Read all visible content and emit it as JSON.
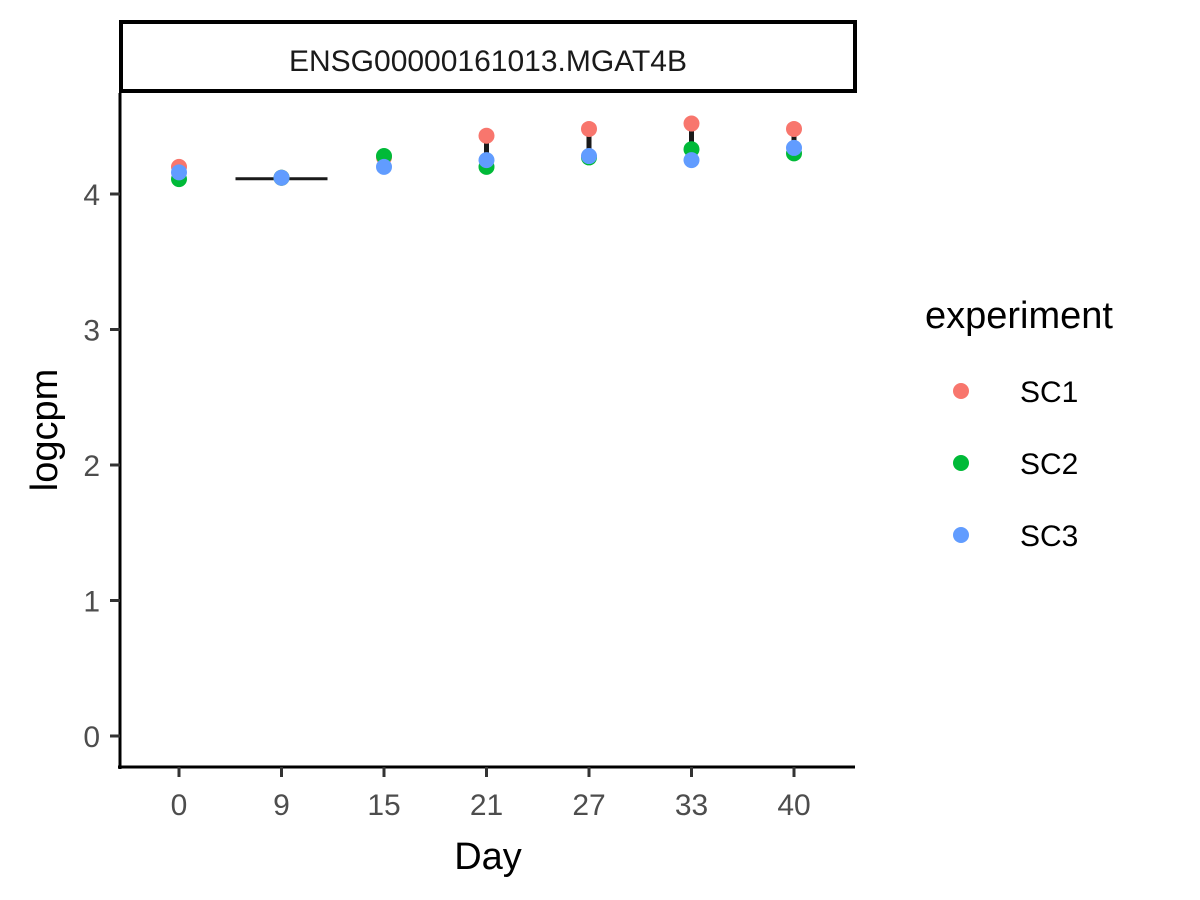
{
  "chart_data": {
    "type": "scatter",
    "facet_title": "ENSG00000161013.MGAT4B",
    "xlabel": "Day",
    "ylabel": "logcpm",
    "categories": [
      "0",
      "9",
      "15",
      "21",
      "27",
      "33",
      "40"
    ],
    "yticks": [
      0,
      1,
      2,
      3,
      4
    ],
    "ylim": [
      -0.2,
      4.75
    ],
    "grid": false,
    "legend": {
      "title": "experiment",
      "position": "right"
    },
    "series": [
      {
        "name": "SC1",
        "color": "#F8766D",
        "values": [
          4.2,
          4.12,
          4.27,
          4.43,
          4.48,
          4.52,
          4.48
        ]
      },
      {
        "name": "SC2",
        "color": "#00BA38",
        "values": [
          4.11,
          4.12,
          4.28,
          4.2,
          4.27,
          4.33,
          4.3
        ]
      },
      {
        "name": "SC3",
        "color": "#619CFF",
        "values": [
          4.16,
          4.12,
          4.2,
          4.25,
          4.28,
          4.25,
          4.34
        ]
      }
    ]
  }
}
